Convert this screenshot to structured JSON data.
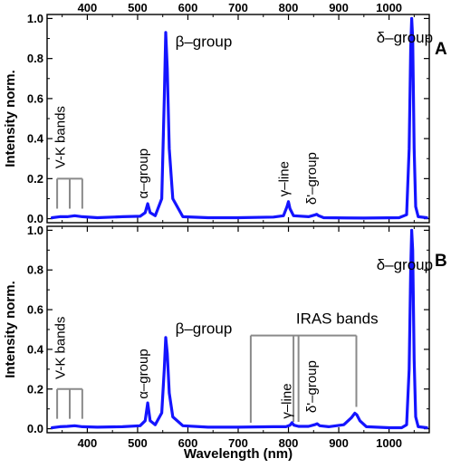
{
  "chart_data": [
    {
      "type": "line",
      "panel": "A",
      "xlabel": "Wavelength (nm)",
      "ylabel": "Intensity norm.",
      "xlim": [
        320,
        1080
      ],
      "ylim": [
        -0.02,
        1.02
      ],
      "xticks": [
        "400",
        "500",
        "600",
        "700",
        "800",
        "900",
        "1000"
      ],
      "yticks": [
        "0.0",
        "0.2",
        "0.4",
        "0.6",
        "0.8",
        "1.0"
      ],
      "tick_values_x": [
        400,
        500,
        600,
        700,
        800,
        900,
        1000
      ],
      "tick_values_y": [
        0,
        0.2,
        0.4,
        0.6,
        0.8,
        1.0
      ],
      "line_color": "#1414ff",
      "series": [
        {
          "x": [
            330,
            345,
            360,
            375,
            390,
            420,
            470,
            505,
            515,
            520,
            525,
            535,
            548,
            553,
            556,
            559,
            563,
            570,
            590,
            640,
            700,
            770,
            790,
            797,
            800,
            803,
            810,
            840,
            852,
            856,
            860,
            870,
            950,
            1020,
            1035,
            1040,
            1043,
            1045,
            1047,
            1050,
            1053,
            1058,
            1075
          ],
          "y": [
            0.005,
            0.01,
            0.01,
            0.015,
            0.01,
            0.005,
            0.01,
            0.012,
            0.03,
            0.075,
            0.03,
            0.015,
            0.1,
            0.6,
            0.93,
            0.75,
            0.35,
            0.1,
            0.01,
            0.005,
            0.005,
            0.008,
            0.015,
            0.06,
            0.085,
            0.05,
            0.015,
            0.01,
            0.018,
            0.022,
            0.015,
            0.005,
            0.003,
            0.005,
            0.02,
            0.35,
            0.85,
            1.0,
            0.9,
            0.35,
            0.06,
            0.01,
            0.005
          ]
        }
      ],
      "annotations": [
        {
          "text": "V-K bands",
          "x": 355,
          "y": 0.25
        },
        {
          "text": "α–group",
          "x": 520,
          "y": 0.1
        },
        {
          "text": "β–group",
          "x": 575,
          "y": 0.86
        },
        {
          "text": "γ–line",
          "x": 800,
          "y": 0.11
        },
        {
          "text": "δ'–group",
          "x": 855,
          "y": 0.07
        },
        {
          "text": "δ–group",
          "x": 975,
          "y": 0.88
        }
      ],
      "bracket_x": [
        340,
        365,
        390
      ],
      "panel_label": "A"
    },
    {
      "type": "line",
      "panel": "B",
      "xlabel": "Wavelength (nm)",
      "ylabel": "Intensity norm.",
      "xlim": [
        320,
        1080
      ],
      "ylim": [
        -0.02,
        1.02
      ],
      "xticks": [
        "400",
        "500",
        "600",
        "700",
        "800",
        "900",
        "1000"
      ],
      "yticks": [
        "0.0",
        "0.2",
        "0.4",
        "0.6",
        "0.8",
        "1.0"
      ],
      "tick_values_x": [
        400,
        500,
        600,
        700,
        800,
        900,
        1000
      ],
      "tick_values_y": [
        0,
        0.2,
        0.4,
        0.6,
        0.8,
        1.0
      ],
      "line_color": "#1414ff",
      "series": [
        {
          "x": [
            330,
            345,
            360,
            375,
            390,
            420,
            470,
            505,
            515,
            520,
            525,
            535,
            548,
            553,
            556,
            559,
            563,
            570,
            590,
            640,
            700,
            770,
            795,
            803,
            807,
            811,
            820,
            840,
            852,
            857,
            862,
            880,
            910,
            925,
            932,
            936,
            942,
            955,
            1000,
            1025,
            1035,
            1040,
            1043,
            1045,
            1047,
            1050,
            1053,
            1058,
            1075
          ],
          "y": [
            0.005,
            0.01,
            0.012,
            0.015,
            0.01,
            0.008,
            0.01,
            0.015,
            0.04,
            0.13,
            0.04,
            0.02,
            0.08,
            0.3,
            0.46,
            0.38,
            0.18,
            0.06,
            0.015,
            0.008,
            0.008,
            0.01,
            0.01,
            0.018,
            0.03,
            0.018,
            0.012,
            0.012,
            0.02,
            0.025,
            0.015,
            0.01,
            0.02,
            0.055,
            0.078,
            0.07,
            0.04,
            0.01,
            0.005,
            0.005,
            0.02,
            0.3,
            0.8,
            1.0,
            0.9,
            0.35,
            0.06,
            0.01,
            0.005
          ]
        }
      ],
      "annotations": [
        {
          "text": "V-K bands",
          "x": 355,
          "y": 0.25
        },
        {
          "text": "α–group",
          "x": 520,
          "y": 0.15
        },
        {
          "text": "β–group",
          "x": 575,
          "y": 0.48
        },
        {
          "text": "IRAS bands",
          "x": 815,
          "y": 0.53
        },
        {
          "text": "γ–line",
          "x": 805,
          "y": 0.05
        },
        {
          "text": "δ'–group",
          "x": 855,
          "y": 0.08
        },
        {
          "text": "δ–group",
          "x": 975,
          "y": 0.8
        }
      ],
      "bracket_x": [
        340,
        365,
        390
      ],
      "iras_x": [
        725,
        810,
        820,
        935
      ],
      "panel_label": "B"
    }
  ]
}
